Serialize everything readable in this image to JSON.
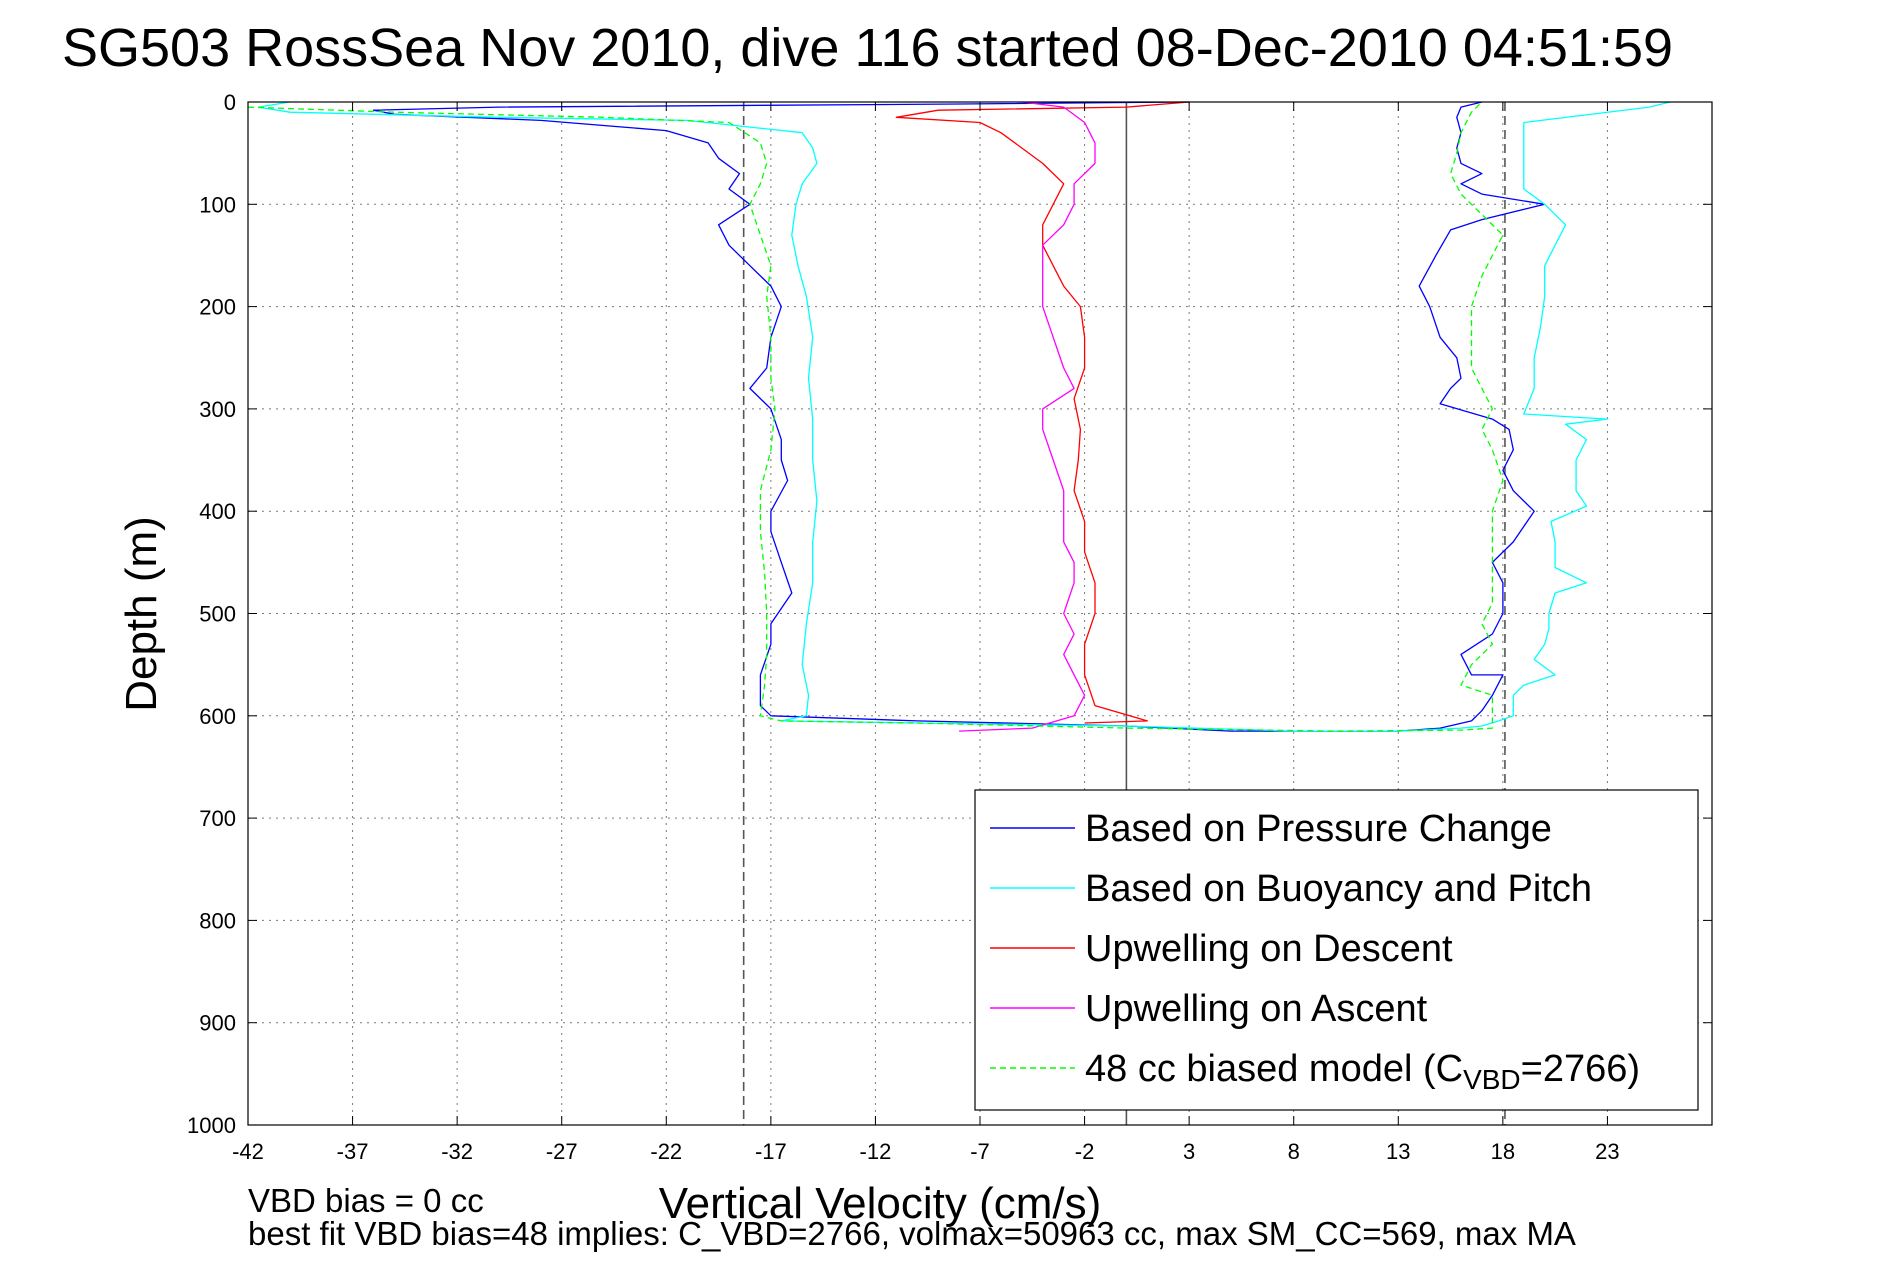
{
  "chart_data": {
    "type": "line",
    "title": "SG503 RossSea Nov 2010, dive 116 started 08-Dec-2010 04:51:59",
    "xlabel": "Vertical Velocity (cm/s)",
    "ylabel": "Depth (m)",
    "xlim": [
      -42,
      28
    ],
    "ylim": [
      0,
      1000
    ],
    "y_reversed": true,
    "grid": true,
    "x_ticks": [
      -42,
      -37,
      -32,
      -27,
      -22,
      -17,
      -12,
      -7,
      -2,
      3,
      8,
      13,
      18,
      23
    ],
    "y_ticks": [
      0,
      100,
      200,
      300,
      400,
      500,
      600,
      700,
      800,
      900,
      1000
    ],
    "legend_position": "lower-right",
    "reference_lines": [
      {
        "x": -18.3,
        "style": "dashed",
        "color": "#555555"
      },
      {
        "x": 0,
        "style": "solid",
        "color": "#555555"
      },
      {
        "x": 18.1,
        "style": "dashed",
        "color": "#555555"
      }
    ],
    "series": [
      {
        "name": "Based on Pressure Change",
        "color": "#0000ff",
        "style": "solid",
        "points": [
          [
            3,
            0
          ],
          [
            -8,
            2
          ],
          [
            -30,
            5
          ],
          [
            -36,
            8
          ],
          [
            -35,
            12
          ],
          [
            -28,
            18
          ],
          [
            -22,
            28
          ],
          [
            -20,
            40
          ],
          [
            -19.5,
            55
          ],
          [
            -18.5,
            70
          ],
          [
            -19,
            85
          ],
          [
            -18,
            100
          ],
          [
            -19.5,
            120
          ],
          [
            -19,
            140
          ],
          [
            -18,
            160
          ],
          [
            -17,
            180
          ],
          [
            -16.5,
            200
          ],
          [
            -17,
            230
          ],
          [
            -17.2,
            260
          ],
          [
            -18,
            280
          ],
          [
            -17,
            300
          ],
          [
            -16.5,
            330
          ],
          [
            -16.5,
            350
          ],
          [
            -16.2,
            370
          ],
          [
            -17,
            400
          ],
          [
            -17,
            420
          ],
          [
            -16.5,
            450
          ],
          [
            -16,
            480
          ],
          [
            -17,
            510
          ],
          [
            -17,
            530
          ],
          [
            -17.5,
            560
          ],
          [
            -17.5,
            590
          ],
          [
            -17,
            600
          ],
          [
            -10,
            605
          ],
          [
            0,
            610
          ],
          [
            5,
            615
          ],
          [
            13,
            615
          ],
          [
            15,
            612
          ],
          [
            16.5,
            605
          ],
          [
            17,
            595
          ],
          [
            17.5,
            580
          ],
          [
            18,
            560
          ],
          [
            16.5,
            560
          ],
          [
            16,
            540
          ],
          [
            17.5,
            520
          ],
          [
            18,
            500
          ],
          [
            18,
            470
          ],
          [
            17.5,
            450
          ],
          [
            18.5,
            430
          ],
          [
            19.5,
            400
          ],
          [
            18.5,
            380
          ],
          [
            18,
            360
          ],
          [
            18.5,
            340
          ],
          [
            18.3,
            320
          ],
          [
            17.5,
            310
          ],
          [
            15,
            295
          ],
          [
            15.5,
            280
          ],
          [
            16,
            270
          ],
          [
            15.8,
            250
          ],
          [
            15,
            230
          ],
          [
            14.5,
            200
          ],
          [
            14,
            180
          ],
          [
            14.8,
            150
          ],
          [
            15.5,
            125
          ],
          [
            17,
            115
          ],
          [
            20,
            100
          ],
          [
            17,
            90
          ],
          [
            16,
            80
          ],
          [
            17,
            70
          ],
          [
            16,
            60
          ],
          [
            15.8,
            45
          ],
          [
            16,
            30
          ],
          [
            15.8,
            15
          ],
          [
            16,
            5
          ],
          [
            17,
            0
          ]
        ]
      },
      {
        "name": "Based on Buoyancy and Pitch",
        "color": "#00ffff",
        "style": "solid",
        "points": [
          [
            -40,
            0
          ],
          [
            -41.5,
            5
          ],
          [
            -40,
            10
          ],
          [
            -30,
            15
          ],
          [
            -21,
            18
          ],
          [
            -15.5,
            30
          ],
          [
            -15,
            45
          ],
          [
            -14.8,
            60
          ],
          [
            -15.5,
            80
          ],
          [
            -15.8,
            100
          ],
          [
            -16,
            130
          ],
          [
            -15.7,
            160
          ],
          [
            -15.3,
            190
          ],
          [
            -15,
            230
          ],
          [
            -15.2,
            270
          ],
          [
            -15,
            310
          ],
          [
            -15,
            350
          ],
          [
            -14.8,
            390
          ],
          [
            -15,
            430
          ],
          [
            -15,
            470
          ],
          [
            -15.3,
            510
          ],
          [
            -15.5,
            550
          ],
          [
            -15.2,
            580
          ],
          [
            -15.3,
            600
          ],
          [
            -16.5,
            605
          ],
          [
            -10,
            607
          ],
          [
            0,
            610
          ],
          [
            8,
            615
          ],
          [
            13,
            615
          ],
          [
            16,
            612
          ],
          [
            17,
            610
          ],
          [
            17.8,
            605
          ],
          [
            18.5,
            600
          ],
          [
            18.5,
            580
          ],
          [
            19,
            570
          ],
          [
            20.5,
            560
          ],
          [
            19.5,
            545
          ],
          [
            20,
            530
          ],
          [
            20.2,
            515
          ],
          [
            20.2,
            500
          ],
          [
            20.5,
            480
          ],
          [
            22,
            470
          ],
          [
            20.5,
            455
          ],
          [
            20.5,
            430
          ],
          [
            20.3,
            410
          ],
          [
            22,
            395
          ],
          [
            21.5,
            380
          ],
          [
            21.5,
            350
          ],
          [
            22,
            330
          ],
          [
            21,
            315
          ],
          [
            23,
            310
          ],
          [
            19,
            305
          ],
          [
            19.5,
            280
          ],
          [
            19.5,
            250
          ],
          [
            19.8,
            220
          ],
          [
            20,
            190
          ],
          [
            20,
            160
          ],
          [
            20.5,
            140
          ],
          [
            21,
            120
          ],
          [
            20,
            100
          ],
          [
            19,
            85
          ],
          [
            19,
            60
          ],
          [
            19,
            40
          ],
          [
            19,
            20
          ],
          [
            25,
            5
          ],
          [
            26,
            0
          ]
        ]
      },
      {
        "name": "Upwelling on Descent",
        "color": "#ff0000",
        "style": "solid",
        "points": [
          [
            3,
            0
          ],
          [
            0,
            5
          ],
          [
            -9,
            8
          ],
          [
            -11,
            15
          ],
          [
            -7,
            20
          ],
          [
            -6,
            30
          ],
          [
            -5,
            45
          ],
          [
            -4,
            60
          ],
          [
            -3,
            80
          ],
          [
            -3.5,
            100
          ],
          [
            -4,
            120
          ],
          [
            -4,
            140
          ],
          [
            -3.5,
            160
          ],
          [
            -3,
            180
          ],
          [
            -2.2,
            200
          ],
          [
            -2,
            230
          ],
          [
            -2,
            260
          ],
          [
            -2.5,
            290
          ],
          [
            -2.2,
            320
          ],
          [
            -2.3,
            350
          ],
          [
            -2.5,
            380
          ],
          [
            -2,
            410
          ],
          [
            -2,
            440
          ],
          [
            -1.5,
            470
          ],
          [
            -1.5,
            500
          ],
          [
            -2,
            530
          ],
          [
            -2,
            560
          ],
          [
            -1.5,
            590
          ],
          [
            1,
            605
          ],
          [
            -2,
            607
          ]
        ]
      },
      {
        "name": "Upwelling on Ascent",
        "color": "#ff00ff",
        "style": "solid",
        "points": [
          [
            -8,
            615
          ],
          [
            -4.5,
            612
          ],
          [
            -2.5,
            600
          ],
          [
            -2,
            580
          ],
          [
            -2.5,
            560
          ],
          [
            -3,
            540
          ],
          [
            -2.5,
            520
          ],
          [
            -3,
            500
          ],
          [
            -2.5,
            470
          ],
          [
            -2.5,
            450
          ],
          [
            -3,
            430
          ],
          [
            -3,
            400
          ],
          [
            -3,
            380
          ],
          [
            -3.5,
            350
          ],
          [
            -4,
            320
          ],
          [
            -4,
            300
          ],
          [
            -2.5,
            280
          ],
          [
            -3,
            260
          ],
          [
            -3.5,
            230
          ],
          [
            -4,
            200
          ],
          [
            -4,
            170
          ],
          [
            -4,
            140
          ],
          [
            -3,
            120
          ],
          [
            -2.5,
            100
          ],
          [
            -2.5,
            80
          ],
          [
            -1.5,
            60
          ],
          [
            -1.5,
            40
          ],
          [
            -2,
            20
          ],
          [
            -3,
            5
          ],
          [
            -5,
            0
          ]
        ]
      },
      {
        "name": "48 cc biased model (C_VBD=2766)",
        "color": "#00ff00",
        "style": "dashed",
        "points": [
          [
            -42,
            5
          ],
          [
            -35,
            10
          ],
          [
            -25,
            15
          ],
          [
            -19,
            20
          ],
          [
            -17.5,
            40
          ],
          [
            -17.2,
            60
          ],
          [
            -17.5,
            80
          ],
          [
            -18,
            100
          ],
          [
            -17.5,
            130
          ],
          [
            -17,
            160
          ],
          [
            -17.2,
            190
          ],
          [
            -17,
            230
          ],
          [
            -17,
            270
          ],
          [
            -16.8,
            300
          ],
          [
            -17,
            340
          ],
          [
            -17.5,
            380
          ],
          [
            -17.5,
            420
          ],
          [
            -17.3,
            460
          ],
          [
            -17.2,
            500
          ],
          [
            -17.2,
            540
          ],
          [
            -17.3,
            570
          ],
          [
            -17.5,
            600
          ],
          [
            -16.5,
            605
          ],
          [
            -10,
            607
          ],
          [
            0,
            612
          ],
          [
            10,
            615
          ],
          [
            16,
            614
          ],
          [
            17.5,
            612
          ],
          [
            17.5,
            600
          ],
          [
            17.5,
            580
          ],
          [
            16,
            570
          ],
          [
            16.5,
            550
          ],
          [
            17.5,
            530
          ],
          [
            17,
            510
          ],
          [
            17.5,
            490
          ],
          [
            17.5,
            460
          ],
          [
            17.5,
            430
          ],
          [
            17.5,
            400
          ],
          [
            18,
            370
          ],
          [
            17.5,
            340
          ],
          [
            17,
            320
          ],
          [
            17.5,
            300
          ],
          [
            17,
            280
          ],
          [
            16.5,
            260
          ],
          [
            16.5,
            230
          ],
          [
            16.5,
            200
          ],
          [
            17,
            170
          ],
          [
            17.5,
            150
          ],
          [
            18,
            130
          ],
          [
            17,
            110
          ],
          [
            16,
            90
          ],
          [
            15.5,
            70
          ],
          [
            15.8,
            50
          ],
          [
            16,
            30
          ],
          [
            16.5,
            10
          ],
          [
            17,
            0
          ]
        ]
      }
    ]
  },
  "legend": {
    "items": [
      {
        "label": "Based on Pressure Change",
        "color": "#0000ff",
        "dashed": false
      },
      {
        "label": "Based on Buoyancy and Pitch",
        "color": "#00ffff",
        "dashed": false
      },
      {
        "label": "Upwelling on Descent",
        "color": "#ff0000",
        "dashed": false
      },
      {
        "label": "Upwelling on Ascent",
        "color": "#ff00ff",
        "dashed": false
      },
      {
        "label": "48 cc biased model (C",
        "sub": "VBD",
        "suffix": "=2766)",
        "color": "#00ff00",
        "dashed": true
      }
    ]
  },
  "footer": {
    "line1": "VBD bias = 0 cc",
    "line2": "best fit VBD bias=48 implies: C_VBD=2766, volmax=50963 cc, max SM_CC=569, max MA"
  }
}
